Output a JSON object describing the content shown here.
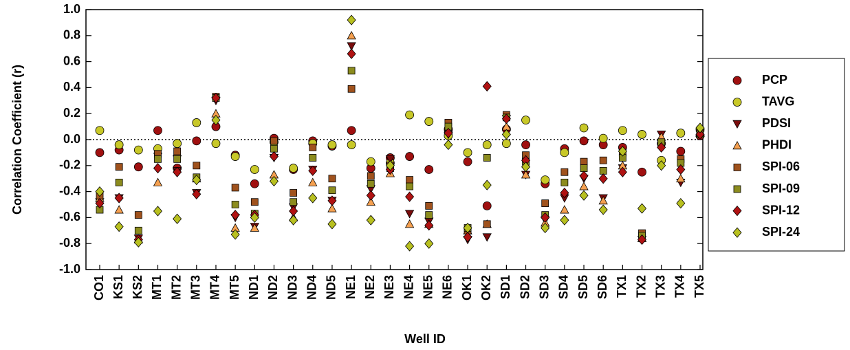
{
  "chart_data": {
    "type": "scatter",
    "x_label": "Well ID",
    "y_label": "Correlation Coefficient (r)",
    "categories": [
      "CO1",
      "KS1",
      "KS2",
      "MT1",
      "MT2",
      "MT3",
      "MT4",
      "MT5",
      "ND1",
      "ND2",
      "ND3",
      "ND4",
      "ND5",
      "NE1",
      "NE2",
      "NE3",
      "NE4",
      "NE5",
      "NE6",
      "OK1",
      "OK2",
      "SD1",
      "SD2",
      "SD3",
      "SD4",
      "SD5",
      "SD6",
      "TX1",
      "TX2",
      "TX3",
      "TX4",
      "TX5"
    ],
    "ylim": [
      -1.0,
      1.0
    ],
    "yticks": [
      {
        "value": -1.0,
        "label": "-1.0"
      },
      {
        "value": -0.8,
        "label": "-0.8"
      },
      {
        "value": -0.6,
        "label": "-0.6"
      },
      {
        "value": -0.4,
        "label": "-0.4"
      },
      {
        "value": -0.2,
        "label": "-0.2"
      },
      {
        "value": 0,
        "label": "0.0"
      },
      {
        "value": 0.2,
        "label": "0.2"
      },
      {
        "value": 0.4,
        "label": "0.4"
      },
      {
        "value": 0.6,
        "label": "0.6"
      },
      {
        "value": 0.8,
        "label": "0.8"
      },
      {
        "value": 1.0,
        "label": "1.0"
      }
    ],
    "hline": 0,
    "legend": "right",
    "series": [
      {
        "name": "PCP",
        "color": "#a01010",
        "marker": "circle",
        "values": [
          -0.1,
          -0.08,
          -0.21,
          0.07,
          -0.22,
          -0.01,
          0.1,
          -0.12,
          -0.34,
          0.01,
          -0.23,
          -0.01,
          -0.05,
          0.07,
          -0.22,
          -0.14,
          -0.13,
          -0.23,
          0.08,
          -0.17,
          -0.51,
          0.08,
          -0.04,
          -0.34,
          -0.07,
          -0.01,
          -0.04,
          -0.06,
          -0.25,
          -0.03,
          -0.09,
          0.03
        ]
      },
      {
        "name": "TAVG",
        "color": "#c8c828",
        "marker": "circle",
        "values": [
          0.07,
          -0.04,
          -0.08,
          -0.07,
          -0.03,
          0.13,
          -0.03,
          -0.13,
          -0.23,
          -0.02,
          -0.22,
          -0.03,
          -0.04,
          -0.04,
          -0.17,
          -0.18,
          0.19,
          0.14,
          0.03,
          -0.1,
          -0.04,
          -0.03,
          0.15,
          -0.31,
          -0.1,
          0.09,
          0.01,
          0.07,
          0.04,
          -0.16,
          0.05,
          0.08
        ]
      },
      {
        "name": "PDSI",
        "color": "#7a0c0c",
        "marker": "triangle-down",
        "values": [
          -0.48,
          -0.45,
          -0.76,
          -0.13,
          -0.24,
          -0.41,
          0.3,
          -0.6,
          -0.67,
          -0.14,
          -0.52,
          -0.23,
          -0.47,
          0.72,
          -0.38,
          -0.15,
          -0.57,
          -0.63,
          0.04,
          -0.77,
          -0.75,
          0.16,
          -0.27,
          -0.62,
          -0.45,
          -0.3,
          -0.45,
          -0.22,
          -0.77,
          0.04,
          -0.33,
          0.04
        ]
      },
      {
        "name": "PHDI",
        "color": "#f5a050",
        "marker": "triangle-up",
        "values": [
          -0.45,
          -0.54,
          -0.77,
          -0.33,
          -0.1,
          -0.3,
          0.2,
          -0.68,
          -0.68,
          -0.27,
          -0.6,
          -0.33,
          -0.53,
          0.8,
          -0.48,
          -0.26,
          -0.65,
          -0.65,
          0.08,
          -0.7,
          -0.65,
          0.1,
          -0.27,
          -0.64,
          -0.54,
          -0.36,
          -0.47,
          -0.2,
          -0.76,
          0.02,
          -0.3,
          0.05
        ]
      },
      {
        "name": "SPI-06",
        "color": "#a0521d",
        "marker": "square",
        "values": [
          -0.43,
          -0.21,
          -0.58,
          -0.11,
          -0.09,
          -0.2,
          0.33,
          -0.37,
          -0.48,
          -0.01,
          -0.41,
          -0.06,
          -0.3,
          0.39,
          -0.28,
          -0.2,
          -0.31,
          -0.51,
          0.13,
          -0.7,
          -0.65,
          0.19,
          -0.12,
          -0.49,
          -0.25,
          -0.17,
          -0.16,
          -0.1,
          -0.72,
          -0.03,
          -0.15,
          0.05
        ]
      },
      {
        "name": "SPI-09",
        "color": "#8c8c1e",
        "marker": "square",
        "values": [
          -0.54,
          -0.33,
          -0.7,
          -0.15,
          -0.15,
          -0.29,
          0.32,
          -0.5,
          -0.57,
          -0.07,
          -0.48,
          -0.14,
          -0.39,
          0.53,
          -0.34,
          -0.22,
          -0.36,
          -0.58,
          0.1,
          -0.68,
          -0.14,
          0.17,
          -0.17,
          -0.58,
          -0.33,
          -0.22,
          -0.24,
          -0.14,
          -0.74,
          -0.02,
          -0.18,
          0.04
        ]
      },
      {
        "name": "SPI-12",
        "color": "#b01212",
        "marker": "diamond",
        "values": [
          -0.49,
          -0.45,
          -0.77,
          -0.22,
          -0.25,
          -0.42,
          0.32,
          -0.58,
          -0.58,
          -0.13,
          -0.55,
          -0.24,
          -0.47,
          0.66,
          -0.43,
          -0.23,
          -0.44,
          -0.66,
          0.05,
          -0.75,
          0.41,
          0.16,
          -0.16,
          -0.6,
          -0.41,
          -0.28,
          -0.3,
          -0.25,
          -0.77,
          -0.06,
          -0.23,
          0.04
        ]
      },
      {
        "name": "SPI-24",
        "color": "#b8c020",
        "marker": "diamond",
        "values": [
          -0.4,
          -0.67,
          -0.79,
          -0.55,
          -0.61,
          -0.31,
          0.15,
          -0.73,
          -0.6,
          -0.32,
          -0.62,
          -0.45,
          -0.65,
          0.92,
          -0.62,
          -0.2,
          -0.82,
          -0.8,
          -0.04,
          -0.68,
          -0.35,
          0.04,
          -0.21,
          -0.68,
          -0.62,
          -0.43,
          -0.54,
          -0.09,
          -0.53,
          -0.2,
          -0.49,
          0.09
        ]
      }
    ]
  }
}
